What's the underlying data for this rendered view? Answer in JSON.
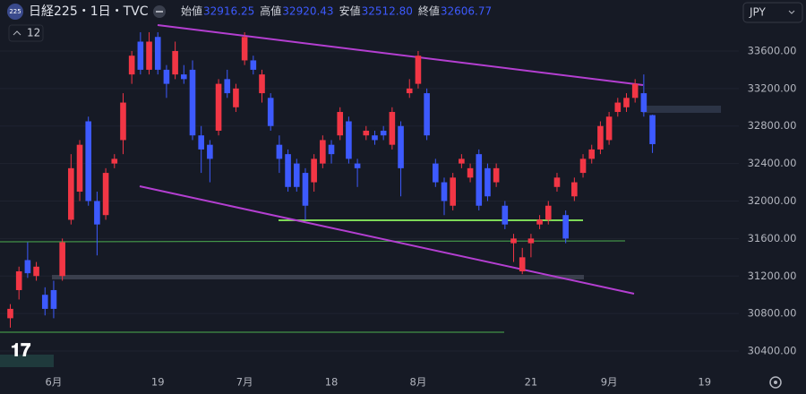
{
  "chart_data": {
    "type": "candlestick",
    "title": "日経225・1日・TVC",
    "badge": "225",
    "indicator_count": "12",
    "currency": "JPY",
    "ohlc_legend": {
      "labels": [
        "始値",
        "高値",
        "安値",
        "終値"
      ],
      "values": [
        32916.25,
        32920.43,
        32512.8,
        32606.77
      ],
      "value_labels": [
        "32916.25",
        "32920.43",
        "32512.80",
        "32606.77"
      ]
    },
    "up_color": "#f23645",
    "down_color": "#3d5afe",
    "ylim": [
      30152,
      34144
    ],
    "yticks": [
      {
        "value": 30400,
        "label": "30400.00"
      },
      {
        "value": 30800,
        "label": "30800.00"
      },
      {
        "value": 31200,
        "label": "31200.00"
      },
      {
        "value": 31600,
        "label": "31600.00"
      },
      {
        "value": 32000,
        "label": "32000.00"
      },
      {
        "value": 32400,
        "label": "32400.00"
      },
      {
        "value": 32800,
        "label": "32800.00"
      },
      {
        "value": 33200,
        "label": "33200.00"
      },
      {
        "value": 33600,
        "label": "33600.00"
      }
    ],
    "categories": [
      null,
      null,
      null,
      null,
      null,
      "6月",
      null,
      null,
      null,
      null,
      null,
      null,
      null,
      null,
      null,
      null,
      null,
      "19",
      null,
      null,
      null,
      null,
      null,
      null,
      null,
      null,
      null,
      "7月",
      null,
      null,
      null,
      null,
      null,
      null,
      null,
      null,
      null,
      "18",
      null,
      null,
      null,
      null,
      null,
      null,
      null,
      null,
      null,
      "8月",
      null,
      null,
      null,
      null,
      null,
      null,
      null,
      null,
      null,
      null,
      null,
      null,
      "21",
      null,
      null,
      null,
      null,
      null,
      null,
      null,
      null,
      "9月",
      null,
      null,
      null,
      null,
      null,
      null,
      null,
      null,
      null,
      null,
      "19",
      null,
      null
    ],
    "open": [
      30750,
      31050,
      31370,
      31200,
      31000,
      31050,
      31200,
      31800,
      32100,
      32850,
      32000,
      31850,
      32400,
      32650,
      33350,
      33700,
      33400,
      33750,
      33400,
      33350,
      33350,
      33400,
      32700,
      32600,
      32750,
      33300,
      33000,
      33500,
      33500,
      33150,
      33100,
      32600,
      32500,
      32400,
      32300,
      32200,
      32400,
      32600,
      32700,
      32850,
      32400,
      32700,
      32700,
      32750,
      32600,
      32800,
      33150,
      33250,
      33150,
      32400,
      32200,
      31950,
      32400,
      32250,
      32500,
      32350,
      32200,
      31950,
      31550,
      31250,
      31550,
      31750,
      31800,
      32150,
      31850,
      32050,
      32300,
      32450,
      32550,
      32650,
      32950,
      33000,
      33100,
      33150,
      32916.25,
      null,
      null,
      null,
      null,
      null,
      null,
      null,
      null
    ],
    "high": [
      30900,
      31300,
      31560,
      31350,
      31080,
      31150,
      31600,
      32500,
      32650,
      32900,
      32100,
      32350,
      32500,
      33150,
      33600,
      33800,
      33800,
      33800,
      33450,
      33700,
      33450,
      33500,
      32800,
      32650,
      33300,
      33400,
      33250,
      33800,
      33550,
      33400,
      33150,
      32700,
      32550,
      32450,
      32350,
      32500,
      32700,
      32650,
      33000,
      32900,
      32450,
      32800,
      32750,
      32800,
      33000,
      32850,
      33300,
      33600,
      33200,
      32450,
      32250,
      32300,
      32500,
      32400,
      32550,
      32400,
      32400,
      32000,
      31650,
      31500,
      31650,
      31850,
      32000,
      32300,
      31900,
      32250,
      32500,
      32600,
      32850,
      32950,
      33100,
      33150,
      33300,
      33350,
      32920.43,
      null,
      null,
      null,
      null,
      null,
      null,
      null,
      null
    ],
    "low": [
      30650,
      30950,
      31180,
      31150,
      30780,
      30750,
      31150,
      31750,
      32000,
      31950,
      31420,
      31800,
      32350,
      32500,
      33250,
      33350,
      33350,
      33350,
      33100,
      33300,
      33250,
      32650,
      32300,
      32200,
      32700,
      33100,
      32950,
      33450,
      33350,
      33050,
      32750,
      32300,
      32100,
      32100,
      31800,
      32100,
      32350,
      32400,
      32650,
      32400,
      32150,
      32650,
      32600,
      32650,
      32550,
      32050,
      33100,
      33200,
      32650,
      32150,
      31850,
      31900,
      32350,
      32200,
      31900,
      32000,
      32150,
      31700,
      31350,
      31220,
      31400,
      31700,
      31750,
      32100,
      31550,
      32000,
      32250,
      32400,
      32500,
      32600,
      32900,
      32950,
      33050,
      32900,
      32512.8,
      null,
      null,
      null,
      null,
      null,
      null,
      null,
      null
    ],
    "close": [
      30850,
      31250,
      31230,
      31300,
      30850,
      30850,
      31560,
      32350,
      32600,
      32000,
      31750,
      32300,
      32450,
      33050,
      33550,
      33400,
      33700,
      33400,
      33250,
      33600,
      33300,
      32700,
      32550,
      32450,
      33250,
      33150,
      33200,
      33750,
      33400,
      33350,
      32800,
      32450,
      32150,
      32150,
      31950,
      32450,
      32650,
      32500,
      32950,
      32450,
      32350,
      32750,
      32650,
      32700,
      32950,
      32350,
      33200,
      33550,
      32700,
      32200,
      32000,
      32250,
      32450,
      32350,
      31950,
      32050,
      32350,
      31750,
      31600,
      31400,
      31600,
      31800,
      31950,
      32250,
      31600,
      32200,
      32450,
      32550,
      32800,
      32900,
      33050,
      33100,
      33250,
      32950,
      32606.77,
      null,
      null,
      null,
      null,
      null,
      null,
      null,
      null
    ]
  }
}
